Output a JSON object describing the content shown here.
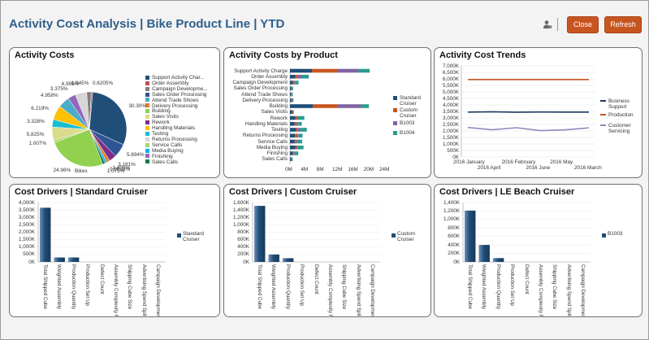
{
  "header": {
    "title": "Activity Cost Analysis | Bike Product Line | YTD",
    "close_label": "Close",
    "refresh_label": "Refresh",
    "icon": "user-settings-icon"
  },
  "colors": {
    "accent": "#c85520",
    "title": "#2e5f8a"
  },
  "panels": {
    "activity_costs": {
      "title": "Activity Costs"
    },
    "costs_by_product": {
      "title": "Activity Costs by Product"
    },
    "cost_trends": {
      "title": "Activity Cost Trends"
    },
    "drivers_standard": {
      "title": "Cost Drivers | Standard Cruiser"
    },
    "drivers_custom": {
      "title": "Cost Drivers | Custom Cruiser"
    },
    "drivers_lebeach": {
      "title": "Cost Drivers | LE Beach Cruiser"
    }
  },
  "chart_data": [
    {
      "type": "pie",
      "title": "Activity Costs",
      "xlabel": "Bikes",
      "categories": [
        "Support Activity Char...",
        "Order Assembly",
        "Campaign Developme...",
        "Sales Order Processing",
        "Attend Trade Shows",
        "Delivery Processing",
        "Building",
        "Sales Visits",
        "Rework",
        "Handling Materials",
        "Testing",
        "Returns Processing",
        "Service Calls",
        "Media Buying",
        "Finishing",
        "Sales Calls"
      ],
      "colors": [
        "#1f4e79",
        "#c0504d",
        "#7f7f7f",
        "#2f5597",
        "#4bacc6",
        "#e67e22",
        "#92d050",
        "#dbdb8d",
        "#7b2c8c",
        "#ffc000",
        "#17becf",
        "#d6d6d6",
        "#a6d96a",
        "#00b0f0",
        "#9467bd",
        "#1a7a4a"
      ],
      "slice_labels": [
        "30.30%",
        "5.894%",
        "3.181%",
        "1.400%",
        "0.9089%",
        "1.075%",
        "24.96%",
        "1.007%",
        "5.825%",
        "3.328%",
        "6.219%",
        "4.958%",
        "3.375%",
        "4.999%",
        "1.945%",
        "0.6205%"
      ],
      "slices": [
        {
          "value": 30.3,
          "color": "#1f4e79",
          "label": "30.30%"
        },
        {
          "value": 5.894,
          "color": "#2f5597",
          "label": "5.894%"
        },
        {
          "value": 3.181,
          "color": "#7b2c8c",
          "label": "3.181%"
        },
        {
          "value": 1.4,
          "color": "#e67e22",
          "label": "1.400%"
        },
        {
          "value": 0.9089,
          "color": "#00b0f0",
          "label": "0.9089%"
        },
        {
          "value": 1.075,
          "color": "#1a7a4a",
          "label": "1.075%"
        },
        {
          "value": 24.96,
          "color": "#92d050",
          "label": "24.96%"
        },
        {
          "value": 1.007,
          "color": "#a6d96a",
          "label": "1.007%"
        },
        {
          "value": 5.825,
          "color": "#dbdb8d",
          "label": "5.825%"
        },
        {
          "value": 3.328,
          "color": "#17becf",
          "label": "3.328%"
        },
        {
          "value": 6.219,
          "color": "#ffc000",
          "label": "6.219%"
        },
        {
          "value": 4.958,
          "color": "#4bacc6",
          "label": "4.958%"
        },
        {
          "value": 3.375,
          "color": "#9467bd",
          "label": "3.375%"
        },
        {
          "value": 4.999,
          "color": "#d6d6d6",
          "label": "4.999%"
        },
        {
          "value": 1.945,
          "color": "#7f7f7f",
          "label": "1.945%"
        },
        {
          "value": 0.6205,
          "color": "#c0504d",
          "label": "0.6205%"
        }
      ]
    },
    {
      "type": "bar",
      "title": "Activity Costs by Product",
      "orientation": "horizontal",
      "stacked": true,
      "categories": [
        "Support Activity Charge",
        "Order Assembly",
        "Campaign Development",
        "Sales Order Processing",
        "Attend Trade Shows",
        "Delivery Processing",
        "Building",
        "Sales Visits",
        "Rework",
        "Handling Materials",
        "Testing",
        "Returns Processing",
        "Service Calls",
        "Media Buying",
        "Finishing",
        "Sales Calls"
      ],
      "xticks": [
        "0M",
        "4M",
        "8M",
        "12M",
        "16M",
        "20M",
        "24M"
      ],
      "xlim": [
        0,
        24
      ],
      "series": [
        {
          "name": "Standard Cruiser",
          "color": "#1f4e79",
          "values": [
            5.6,
            1.4,
            0.7,
            0.35,
            0.25,
            0.3,
            5.8,
            0.6,
            1.4,
            1.2,
            1.6,
            1.3,
            1.2,
            1.4,
            0.7,
            0.3
          ]
        },
        {
          "name": "Custom Cruiser",
          "color": "#c85520",
          "values": [
            6.4,
            0.6,
            0.4,
            0.15,
            0.15,
            0.2,
            6.3,
            0.2,
            0.35,
            0.5,
            0.4,
            0.6,
            0.4,
            0.35,
            0.2,
            0.1
          ]
        },
        {
          "name": "B1003",
          "color": "#8064a2",
          "values": [
            5.5,
            0.9,
            0.2,
            0.1,
            0.2,
            0.2,
            6.0,
            0.1,
            0.2,
            0.4,
            0.6,
            0.3,
            0.3,
            0.3,
            0.3,
            0.1
          ]
        },
        {
          "name": "B1004",
          "color": "#2a9d8f",
          "values": [
            2.8,
            1.9,
            0.9,
            0.2,
            0.1,
            0.2,
            2.0,
            0.1,
            1.7,
            0.9,
            1.7,
            1.0,
            1.2,
            1.4,
            0.9,
            0.2
          ]
        }
      ]
    },
    {
      "type": "line",
      "title": "Activity Cost Trends",
      "x": [
        "2016 January",
        "2016 April",
        "2016 February",
        "2016 June",
        "2016 May",
        "2016 March"
      ],
      "yticks": [
        "0K",
        "500K",
        "1,000K",
        "1,500K",
        "2,000K",
        "2,500K",
        "3,000K",
        "3,500K",
        "4,000K",
        "4,500K",
        "5,000K",
        "5,500K",
        "6,000K",
        "6,500K",
        "7,000K"
      ],
      "ylim": [
        0,
        7000
      ],
      "series": [
        {
          "name": "Business Support",
          "color": "#1f3864",
          "values": [
            3450,
            3470,
            3440,
            3460,
            3450,
            3450
          ]
        },
        {
          "name": "Production",
          "color": "#c85520",
          "values": [
            5950,
            5950,
            5950,
            5950,
            5950,
            5950
          ]
        },
        {
          "name": "Customer Servicing",
          "color": "#8e8ac0",
          "values": [
            2270,
            2090,
            2250,
            2030,
            2080,
            2240
          ]
        }
      ]
    },
    {
      "type": "bar",
      "title": "Cost Drivers | Standard Cruiser",
      "categories": [
        "Total Shipped Cube",
        "Weighted Assembly",
        "Production Quantity",
        "Production Set Up",
        "Defect Count",
        "Assembly Complexity Factor",
        "Shipping Cube Size",
        "Advertising Spend Split",
        "Campaign Development Hours"
      ],
      "yticks": [
        "0K",
        "500K",
        "1,000K",
        "1,500K",
        "2,000K",
        "2,500K",
        "3,000K",
        "3,500K",
        "4,000K"
      ],
      "ylim": [
        0,
        4000
      ],
      "series": [
        {
          "name": "Standard Cruiser",
          "color": "#1f4e79",
          "values": [
            3650,
            300,
            300,
            0,
            0,
            0,
            0,
            0,
            0
          ]
        }
      ]
    },
    {
      "type": "bar",
      "title": "Cost Drivers | Custom Cruiser",
      "categories": [
        "Total Shipped Cube",
        "Weighted Assembly",
        "Production Quantity",
        "Production Set Up",
        "Defect Count",
        "Assembly Complexity Factor",
        "Shipping Cube Size",
        "Advertising Spend Split",
        "Campaign Development Hours"
      ],
      "yticks": [
        "0K",
        "200K",
        "400K",
        "600K",
        "800K",
        "1,000K",
        "1,200K",
        "1,400K",
        "1,600K"
      ],
      "ylim": [
        0,
        1600
      ],
      "series": [
        {
          "name": "Custom Cruiser",
          "color": "#1f4e79",
          "values": [
            1510,
            200,
            100,
            0,
            0,
            0,
            0,
            0,
            0
          ]
        }
      ]
    },
    {
      "type": "bar",
      "title": "Cost Drivers | LE Beach Cruiser",
      "categories": [
        "Total Shipped Cube",
        "Weighted Assembly",
        "Production Quantity",
        "Production Set Up",
        "Defect Count",
        "Assembly Complexity Factor",
        "Shipping Cube Size",
        "Advertising Spend Split",
        "Campaign Development Hours"
      ],
      "yticks": [
        "0K",
        "200K",
        "400K",
        "600K",
        "800K",
        "1,000K",
        "1,200K",
        "1,400K"
      ],
      "ylim": [
        0,
        1400
      ],
      "series": [
        {
          "name": "B1003",
          "color": "#1f4e79",
          "values": [
            1210,
            400,
            90,
            0,
            0,
            0,
            0,
            0,
            0
          ]
        }
      ]
    }
  ]
}
